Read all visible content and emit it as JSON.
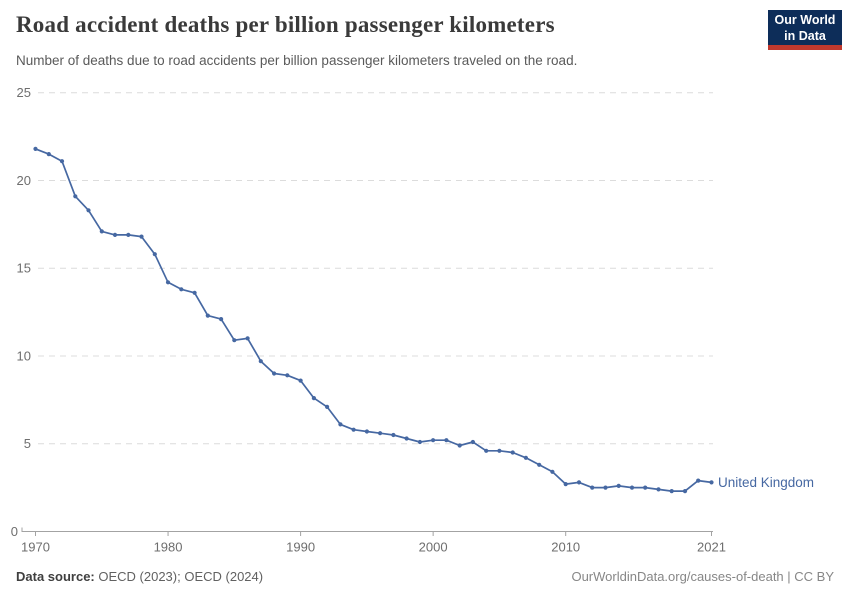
{
  "header": {
    "title": "Road accident deaths per billion passenger kilometers",
    "subtitle": "Number of deaths due to road accidents per billion passenger kilometers traveled on the road.",
    "logo": {
      "line1": "Our World",
      "line2": "in Data",
      "bg_color": "#0d2d59",
      "accent_color": "#c0392e"
    }
  },
  "footer": {
    "source_label": "Data source:",
    "source_text": " OECD (2023); OECD (2024)",
    "attribution": "OurWorldinData.org/causes-of-death | CC BY"
  },
  "colors": {
    "grid": "#dcdcdc",
    "axis": "#a3a3a3",
    "tick_label": "#6e6e6e",
    "line": "#4668a2"
  },
  "chart_data": {
    "type": "line",
    "title": "Road accident deaths per billion passenger kilometers",
    "subtitle": "Number of deaths due to road accidents per billion passenger kilometers traveled on the road.",
    "xlabel": "",
    "ylabel": "",
    "xlim": [
      1970,
      2021
    ],
    "ylim": [
      0,
      25
    ],
    "xticks": [
      1970,
      1980,
      1990,
      2000,
      2010,
      2021
    ],
    "yticks": [
      0,
      5,
      10,
      15,
      20,
      25
    ],
    "grid": "horizontal-dashed",
    "legend": "end-of-line-label",
    "series": [
      {
        "name": "United Kingdom",
        "color": "#4668a2",
        "x": [
          1970,
          1971,
          1972,
          1973,
          1974,
          1975,
          1976,
          1977,
          1978,
          1979,
          1980,
          1981,
          1982,
          1983,
          1984,
          1985,
          1986,
          1987,
          1988,
          1989,
          1990,
          1991,
          1992,
          1993,
          1994,
          1995,
          1996,
          1997,
          1998,
          1999,
          2000,
          2001,
          2002,
          2003,
          2004,
          2005,
          2006,
          2007,
          2008,
          2009,
          2010,
          2011,
          2012,
          2013,
          2014,
          2015,
          2016,
          2017,
          2018,
          2019,
          2020,
          2021
        ],
        "values": [
          21.8,
          21.5,
          21.1,
          19.1,
          18.3,
          17.1,
          16.9,
          16.9,
          16.8,
          15.8,
          14.2,
          13.8,
          13.6,
          12.3,
          12.1,
          10.9,
          11.0,
          9.7,
          9.0,
          8.9,
          8.6,
          7.6,
          7.1,
          6.1,
          5.8,
          5.7,
          5.6,
          5.5,
          5.3,
          5.1,
          5.2,
          5.2,
          4.9,
          5.1,
          4.6,
          4.6,
          4.5,
          4.2,
          3.8,
          3.4,
          2.7,
          2.8,
          2.5,
          2.5,
          2.6,
          2.5,
          2.5,
          2.4,
          2.3,
          2.3,
          2.9,
          2.8
        ]
      }
    ]
  }
}
